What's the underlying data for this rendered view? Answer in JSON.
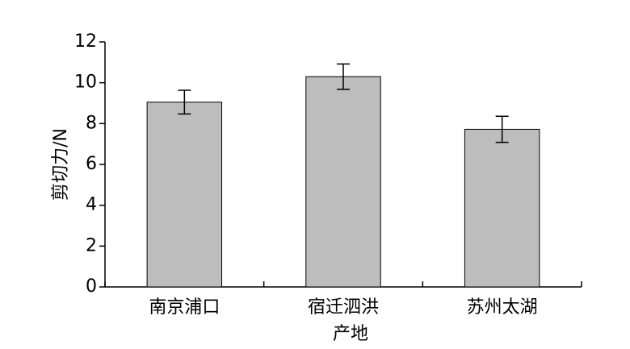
{
  "chart_data": {
    "type": "bar",
    "x_label": "产地",
    "y_label": "剪切力/N",
    "categories": [
      "南京浦口",
      "宿迁泗洪",
      "苏州太湖"
    ],
    "values": [
      9.05,
      10.3,
      7.72
    ],
    "errors": [
      0.58,
      0.62,
      0.64
    ],
    "color": "#bdbdbd",
    "ylim": [
      0,
      12
    ],
    "yticks": [
      0,
      2,
      4,
      6,
      8,
      10,
      12
    ]
  }
}
